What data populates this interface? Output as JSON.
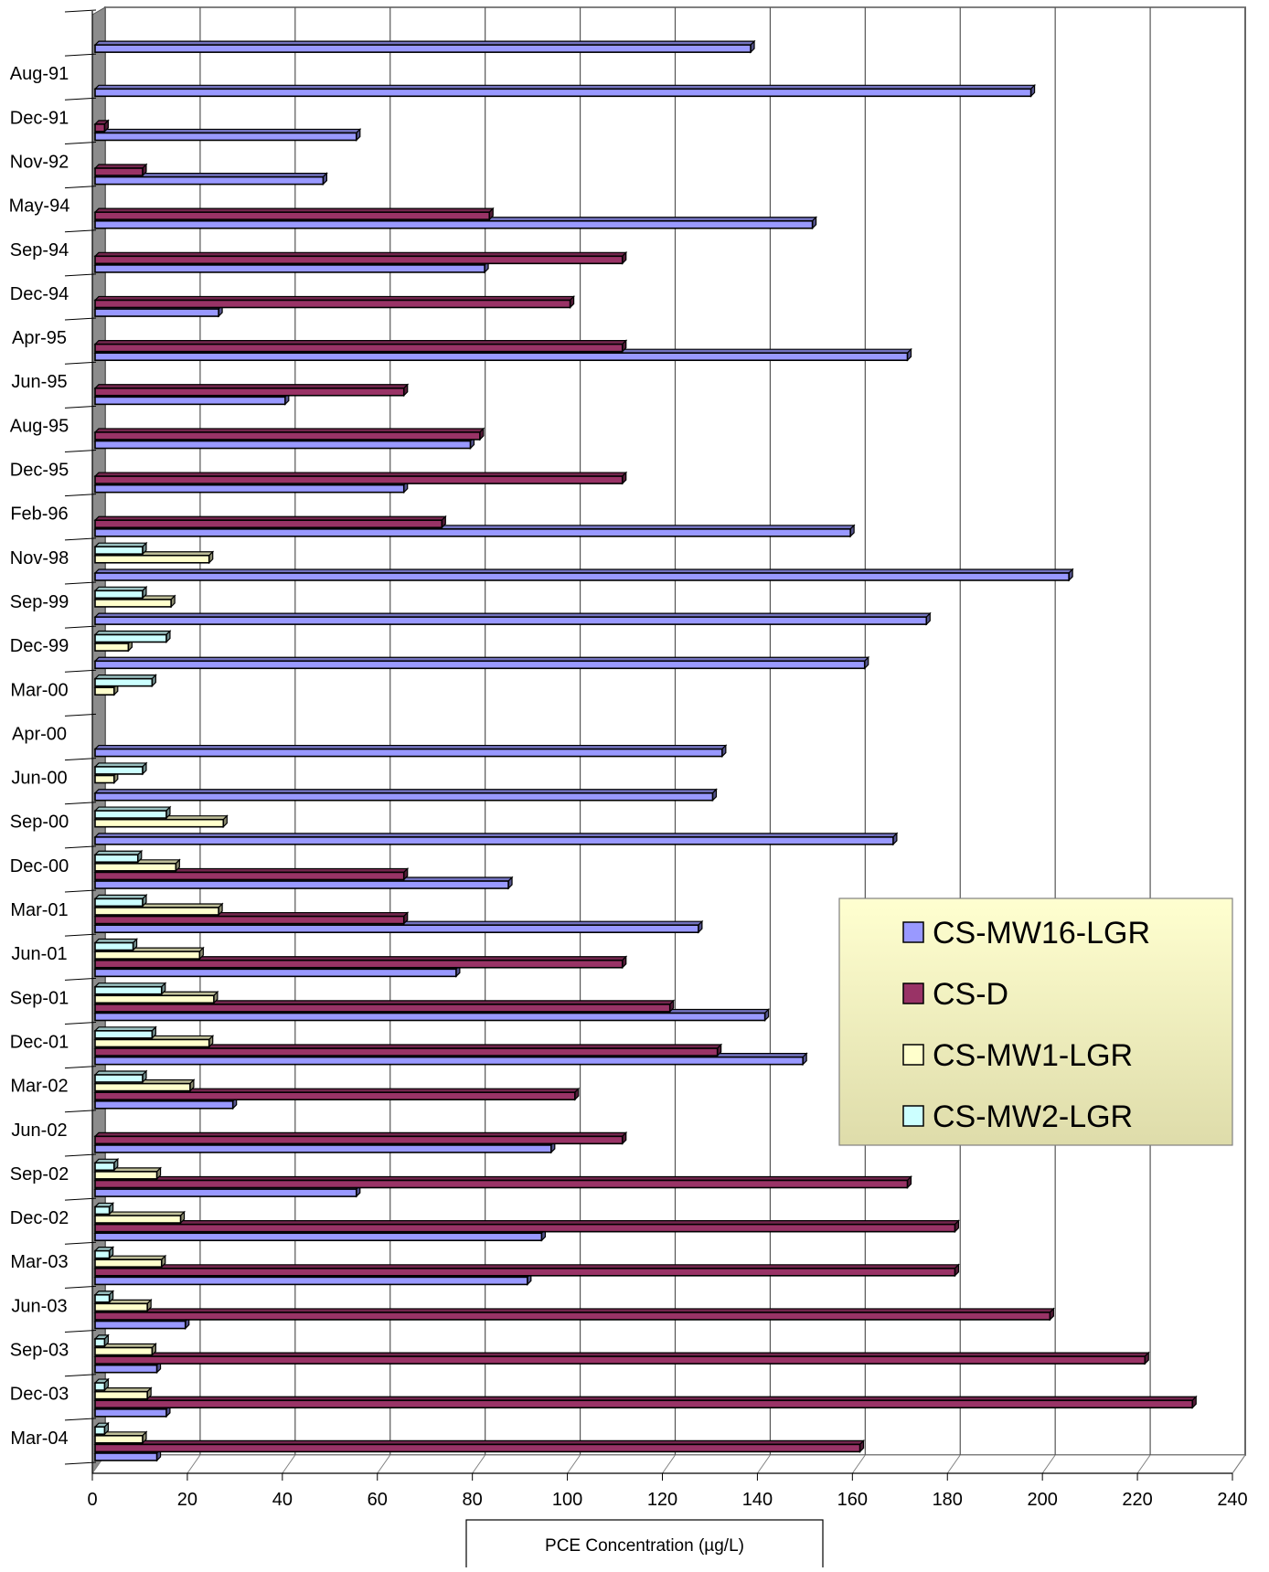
{
  "chart_data": {
    "type": "bar",
    "orientation": "horizontal",
    "style": "3d",
    "xlabel": "PCE Concentration (µg/L)",
    "xlim": [
      0,
      240
    ],
    "xticks": [
      0,
      20,
      40,
      60,
      80,
      100,
      120,
      140,
      160,
      180,
      200,
      220,
      240
    ],
    "grid": true,
    "legend_position": "right",
    "categories": [
      "",
      "Aug-91",
      "Dec-91",
      "Nov-92",
      "May-94",
      "Sep-94",
      "Dec-94",
      "Apr-95",
      "Jun-95",
      "Aug-95",
      "Dec-95",
      "Feb-96",
      "Nov-98",
      "Sep-99",
      "Dec-99",
      "Mar-00",
      "Apr-00",
      "Jun-00",
      "Sep-00",
      "Dec-00",
      "Mar-01",
      "Jun-01",
      "Sep-01",
      "Dec-01",
      "Mar-02",
      "Jun-02",
      "Sep-02",
      "Dec-02",
      "Mar-03",
      "Jun-03",
      "Sep-03",
      "Dec-03",
      "Mar-04"
    ],
    "series": [
      {
        "name": "CS-MW16-LGR",
        "color": "#9999ff",
        "values": [
          138,
          197,
          55,
          48,
          151,
          82,
          26,
          171,
          40,
          79,
          65,
          159,
          205,
          175,
          162,
          null,
          132,
          130,
          168,
          87,
          127,
          76,
          141,
          149,
          29,
          96,
          55,
          94,
          91,
          19,
          13,
          15,
          13
        ]
      },
      {
        "name": "CS-D",
        "color": "#993366",
        "values": [
          null,
          null,
          2,
          10,
          83,
          111,
          100,
          111,
          65,
          81,
          111,
          73,
          null,
          null,
          null,
          null,
          null,
          null,
          null,
          65,
          65,
          111,
          121,
          131,
          101,
          111,
          171,
          181,
          181,
          201,
          221,
          231,
          161
        ]
      },
      {
        "name": "CS-MW1-LGR",
        "color": "#ffffcc",
        "values": [
          null,
          null,
          null,
          null,
          null,
          null,
          null,
          null,
          null,
          null,
          null,
          null,
          24,
          16,
          7,
          4,
          null,
          4,
          27,
          17,
          26,
          22,
          25,
          24,
          20,
          null,
          13,
          18,
          14,
          11,
          12,
          11,
          10
        ]
      },
      {
        "name": "CS-MW2-LGR",
        "color": "#ccffff",
        "values": [
          null,
          null,
          null,
          null,
          null,
          null,
          null,
          null,
          null,
          null,
          null,
          null,
          10,
          10,
          15,
          12,
          null,
          10,
          15,
          9,
          10,
          8,
          14,
          12,
          10,
          null,
          4,
          3,
          3,
          3,
          2,
          2,
          2
        ]
      }
    ]
  }
}
